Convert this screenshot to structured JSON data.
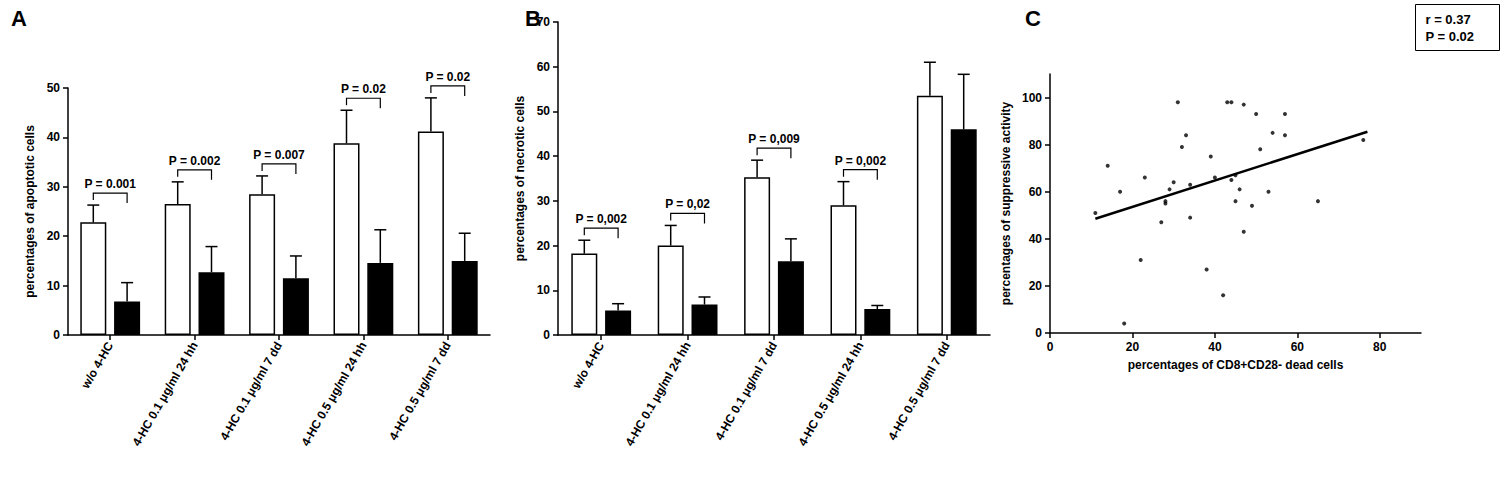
{
  "chart_data": [
    {
      "type": "bar",
      "title": "A",
      "y_label": "percentages of apoptotic cells",
      "categories": [
        "w/o 4-HC",
        "4-HC 0.1 μg/ml 24 hh",
        "4-HC 0.1 μg/ml 7 dd",
        "4-HC 0.5 μg/ml 24 hh",
        "4-HC 0.5 μg/ml 7 dd"
      ],
      "series": [
        {
          "color": "#ffffff",
          "values": [
            22.8,
            26.5,
            28.5,
            38.8,
            41.2
          ],
          "errors": [
            3.5,
            4.5,
            3.7,
            6.7,
            6.8
          ]
        },
        {
          "color": "#000000",
          "values": [
            6.8,
            12.7,
            11.5,
            14.6,
            15.0
          ],
          "errors": [
            3.8,
            5.2,
            4.5,
            6.7,
            5.6
          ]
        }
      ],
      "annotations": [
        "P = 0.001",
        "P = 0.002",
        "P = 0.007",
        "P = 0.02",
        "P = 0.02"
      ],
      "ylim": [
        0,
        50
      ],
      "yticks": [
        0,
        10,
        20,
        30,
        40,
        50
      ],
      "grid": false
    },
    {
      "type": "bar",
      "title": "B",
      "y_label": "percentages of necrotic cells",
      "categories": [
        "w/o 4-HC",
        "4-HC 0.1 μg/ml 24 hh",
        "4-HC 0.1 μg/ml 7 dd",
        "4-HC 0.5 μg/ml 24 hh",
        "4-HC 0.5 μg/ml 7 dd"
      ],
      "series": [
        {
          "color": "#ffffff",
          "values": [
            18.2,
            20.0,
            35.3,
            29.0,
            53.5
          ],
          "errors": [
            3.0,
            4.5,
            3.8,
            5.3,
            7.5
          ]
        },
        {
          "color": "#000000",
          "values": [
            5.5,
            6.8,
            16.5,
            5.8,
            46.0
          ],
          "errors": [
            1.5,
            1.7,
            5.0,
            0.8,
            12.3
          ]
        }
      ],
      "annotations": [
        "P = 0,002",
        "P = 0,02",
        "P = 0,009",
        "P = 0,002",
        null
      ],
      "ylim": [
        0,
        70
      ],
      "yticks": [
        0,
        10,
        20,
        30,
        40,
        50,
        60,
        70
      ],
      "grid": false
    },
    {
      "type": "scatter",
      "title": "C",
      "x_label": "percentages of CD8+CD28- dead cells",
      "y_label": "percentages of suppressive activity",
      "series": [
        {
          "type": "scatter",
          "color": "#000000",
          "marker": "circle",
          "x": [
            11,
            14,
            17,
            18,
            22,
            23,
            27,
            28,
            28,
            29,
            30,
            31,
            32,
            33,
            34,
            34,
            38,
            39,
            40,
            42,
            43,
            44,
            44,
            45,
            45,
            46,
            47,
            47,
            49,
            50,
            51,
            53,
            54,
            57,
            57,
            65,
            76
          ],
          "y": [
            51,
            71,
            60,
            4,
            31,
            66,
            47,
            55,
            56,
            61,
            64,
            98,
            79,
            84,
            49,
            63,
            27,
            75,
            66,
            16,
            98,
            98,
            65,
            56,
            67,
            61,
            97,
            43,
            54,
            93,
            78,
            60,
            85,
            84,
            93,
            56,
            82
          ]
        },
        {
          "type": "line",
          "color": "#000000",
          "line_style": "solid",
          "x": [
            11,
            77
          ],
          "y": [
            48.5,
            85.5
          ]
        }
      ],
      "annotations": [
        "r = 0.37",
        "P = 0.02"
      ],
      "xlim": [
        0,
        90
      ],
      "xticks": [
        0,
        20,
        40,
        60,
        80
      ],
      "ylim": [
        0,
        110
      ],
      "yticks": [
        0,
        20,
        40,
        60,
        80,
        100
      ],
      "grid": false
    }
  ]
}
